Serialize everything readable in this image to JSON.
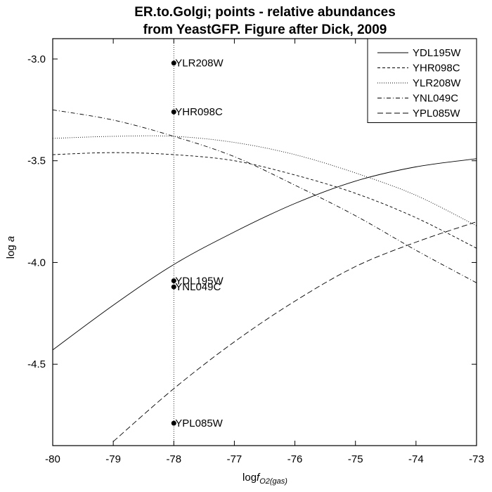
{
  "chart_data": {
    "type": "line",
    "title_lines": [
      "ER.to.Golgi; points - relative abundances",
      "from YeastGFP. Figure after Dick, 2009"
    ],
    "xlabel_main": "log",
    "xlabel_italic": "f",
    "xlabel_sub": "O2(gas)",
    "ylabel_main": "log ",
    "ylabel_italic": "a",
    "xlim": [
      -80,
      -73
    ],
    "ylim": [
      -4.9,
      -2.9
    ],
    "x_ticks": [
      -80,
      -79,
      -78,
      -77,
      -76,
      -75,
      -74,
      -73
    ],
    "x_tick_labels": [
      "-80",
      "-79",
      "-78",
      "-77",
      "-76",
      "-75",
      "-74",
      "-73"
    ],
    "y_ticks": [
      -3.0,
      -3.5,
      -4.0,
      -4.5
    ],
    "y_tick_labels": [
      "-3.0",
      "-3.5",
      "-4.0",
      "-4.5"
    ],
    "reference_line_x": -78,
    "legend_position": "top-right",
    "series": [
      {
        "name": "YDL195W",
        "dash": "solid",
        "x": [
          -80,
          -79,
          -78,
          -77,
          -76,
          -75,
          -74,
          -73
        ],
        "y": [
          -4.43,
          -4.21,
          -4.01,
          -3.85,
          -3.71,
          -3.6,
          -3.53,
          -3.49
        ]
      },
      {
        "name": "YHR098C",
        "dash": "dashed-short",
        "x": [
          -80,
          -79,
          -78,
          -77,
          -76,
          -75,
          -74,
          -73
        ],
        "y": [
          -3.47,
          -3.46,
          -3.47,
          -3.5,
          -3.57,
          -3.66,
          -3.78,
          -3.93
        ]
      },
      {
        "name": "YLR208W",
        "dash": "dotted",
        "x": [
          -80,
          -79,
          -78,
          -77,
          -76,
          -75,
          -74,
          -73
        ],
        "y": [
          -3.39,
          -3.38,
          -3.38,
          -3.41,
          -3.47,
          -3.56,
          -3.67,
          -3.82
        ]
      },
      {
        "name": "YNL049C",
        "dash": "dash-dot",
        "x": [
          -80,
          -79,
          -78,
          -77,
          -76,
          -75,
          -74,
          -73
        ],
        "y": [
          -3.25,
          -3.3,
          -3.38,
          -3.48,
          -3.62,
          -3.77,
          -3.94,
          -4.1
        ]
      },
      {
        "name": "YPL085W",
        "dash": "dashed-long",
        "x": [
          -79,
          -78,
          -77,
          -76,
          -75,
          -74,
          -73
        ],
        "y": [
          -4.88,
          -4.62,
          -4.39,
          -4.19,
          -4.02,
          -3.9,
          -3.8
        ]
      }
    ],
    "points": [
      {
        "name": "YLR208W",
        "x": -78,
        "y": -3.02
      },
      {
        "name": "YHR098C",
        "x": -78,
        "y": -3.26
      },
      {
        "name": "YDL195W",
        "x": -78,
        "y": -4.09
      },
      {
        "name": "YNL049C",
        "x": -78,
        "y": -4.12
      },
      {
        "name": "YPL085W",
        "x": -78,
        "y": -4.79
      }
    ]
  }
}
